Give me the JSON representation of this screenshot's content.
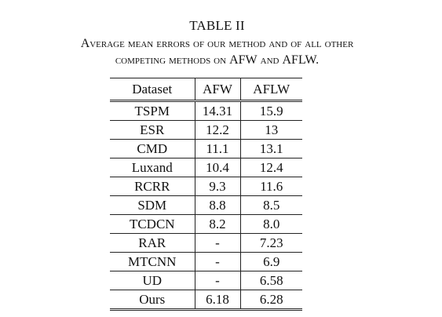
{
  "table": {
    "number": "TABLE II",
    "caption_line1": "Average mean errors of our method and of all other",
    "caption_line2_pre": "competing methods on ",
    "caption_line2_afw": "AFW",
    "caption_line2_and": " and ",
    "caption_line2_aflw": "AFLW",
    "caption_line2_end": ".",
    "columns": [
      "Dataset",
      "AFW",
      "AFLW"
    ],
    "rows": [
      {
        "method": "TSPM",
        "afw": "14.31",
        "aflw": "15.9"
      },
      {
        "method": "ESR",
        "afw": "12.2",
        "aflw": "13"
      },
      {
        "method": "CMD",
        "afw": "11.1",
        "aflw": "13.1"
      },
      {
        "method": "Luxand",
        "afw": "10.4",
        "aflw": "12.4"
      },
      {
        "method": "RCRR",
        "afw": "9.3",
        "aflw": "11.6"
      },
      {
        "method": "SDM",
        "afw": "8.8",
        "aflw": "8.5"
      },
      {
        "method": "TCDCN",
        "afw": "8.2",
        "aflw": "8.0"
      },
      {
        "method": "RAR",
        "afw": "-",
        "aflw": "7.23"
      },
      {
        "method": "MTCNN",
        "afw": "-",
        "aflw": "6.9"
      },
      {
        "method": "UD",
        "afw": "-",
        "aflw": "6.58"
      },
      {
        "method": "Ours",
        "afw": "6.18",
        "aflw": "6.28"
      }
    ]
  }
}
